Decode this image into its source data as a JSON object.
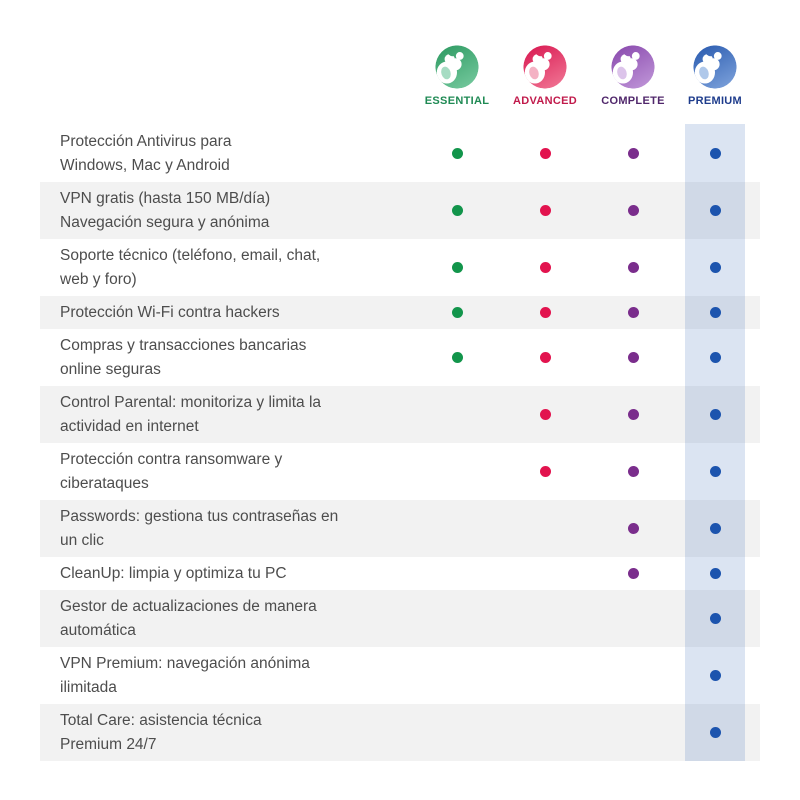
{
  "header": {
    "plans": [
      {
        "name": "ESSENTIAL",
        "label_color": "#1F8A54",
        "dot_color": "#12954B",
        "logo_colors": [
          "#2F9B63",
          "#74C89D"
        ],
        "logo_tint": "#A6DCC3",
        "highlighted": false
      },
      {
        "name": "ADVANCED",
        "label_color": "#C11A4B",
        "dot_color": "#E2134E",
        "logo_colors": [
          "#D91A52",
          "#F07493"
        ],
        "logo_tint": "#F4B2C4",
        "highlighted": false
      },
      {
        "name": "COMPLETE",
        "label_color": "#50276B",
        "dot_color": "#7A2D8C",
        "logo_colors": [
          "#8A4AAE",
          "#BE94D7"
        ],
        "logo_tint": "#DCC4EA",
        "highlighted": false
      },
      {
        "name": "PREMIUM",
        "label_color": "#1E3C8C",
        "dot_color": "#1A52AE",
        "logo_colors": [
          "#2B5CB0",
          "#7BA0DA"
        ],
        "logo_tint": "#AFC8EA",
        "highlighted": true
      }
    ]
  },
  "features": [
    {
      "lines": [
        "Protección Antivirus para",
        "Windows, Mac y Android"
      ],
      "included": [
        true,
        true,
        true,
        true
      ]
    },
    {
      "lines": [
        "VPN gratis (hasta 150 MB/día)",
        "Navegación segura y anónima"
      ],
      "included": [
        true,
        true,
        true,
        true
      ]
    },
    {
      "lines": [
        "Soporte técnico (teléfono, email, chat,",
        "web y foro)"
      ],
      "included": [
        true,
        true,
        true,
        true
      ]
    },
    {
      "lines": [
        "Protección Wi-Fi contra hackers"
      ],
      "included": [
        true,
        true,
        true,
        true
      ]
    },
    {
      "lines": [
        "Compras y transacciones bancarias",
        "online seguras"
      ],
      "included": [
        true,
        true,
        true,
        true
      ]
    },
    {
      "lines": [
        "Control Parental: monitoriza y limita la",
        "actividad en internet"
      ],
      "included": [
        false,
        true,
        true,
        true
      ]
    },
    {
      "lines": [
        "Protección contra ransomware y",
        "ciberataques"
      ],
      "included": [
        false,
        true,
        true,
        true
      ]
    },
    {
      "lines": [
        "Passwords: gestiona tus contraseñas en",
        "un clic"
      ],
      "included": [
        false,
        false,
        true,
        true
      ]
    },
    {
      "lines": [
        "CleanUp: limpia y optimiza tu PC"
      ],
      "included": [
        false,
        false,
        true,
        true
      ]
    },
    {
      "lines": [
        "Gestor de actualizaciones de manera",
        "automática"
      ],
      "included": [
        false,
        false,
        false,
        true
      ]
    },
    {
      "lines": [
        "VPN Premium: navegación anónima",
        "ilimitada"
      ],
      "included": [
        false,
        false,
        false,
        true
      ]
    },
    {
      "lines": [
        "Total Care: asistencia técnica",
        "Premium 24/7"
      ],
      "included": [
        false,
        false,
        false,
        true
      ]
    }
  ],
  "colors": {
    "page_bg": "#FFFFFF",
    "row_alt": "#F2F2F2",
    "text": "#4D4D4D",
    "premium_band": "rgba(43,92,176,0.17)"
  }
}
